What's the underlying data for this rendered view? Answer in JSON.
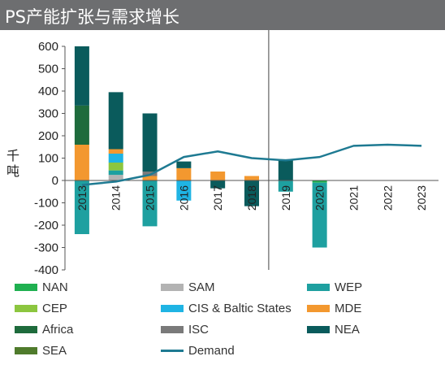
{
  "title": "PS产能扩张与需求增长",
  "chart_data": {
    "type": "bar",
    "title": "PS产能扩张与需求增长",
    "ylabel": "千吨",
    "xlabel": "",
    "ylim": [
      -400,
      600
    ],
    "yticks": [
      -400,
      -300,
      -200,
      -100,
      0,
      100,
      200,
      300,
      400,
      500,
      600
    ],
    "categories": [
      "2013",
      "2014",
      "2015",
      "2016",
      "2017",
      "2018",
      "2019",
      "2020",
      "2021",
      "2022",
      "2023"
    ],
    "stacked": true,
    "divider_after": "2018",
    "series": [
      {
        "name": "NAN",
        "color": "#1fb050",
        "values": [
          0,
          0,
          0,
          0,
          0,
          0,
          0,
          -10,
          0,
          0,
          0
        ]
      },
      {
        "name": "SAM",
        "color": "#b3b3b3",
        "values": [
          0,
          25,
          0,
          0,
          0,
          0,
          0,
          0,
          0,
          0,
          0
        ]
      },
      {
        "name": "WEP",
        "color": "#1ea0a0",
        "values": [
          -240,
          20,
          -205,
          0,
          0,
          0,
          -50,
          -290,
          0,
          0,
          0
        ]
      },
      {
        "name": "CEP",
        "color": "#8cc63f",
        "values": [
          0,
          35,
          0,
          0,
          0,
          0,
          0,
          0,
          0,
          0,
          0
        ]
      },
      {
        "name": "CIS & Baltic States",
        "color": "#1fb4e4",
        "values": [
          0,
          40,
          0,
          -90,
          0,
          0,
          0,
          0,
          0,
          0,
          0
        ]
      },
      {
        "name": "MDE",
        "color": "#f3982f",
        "values": [
          160,
          20,
          20,
          55,
          40,
          20,
          0,
          0,
          0,
          0,
          0
        ]
      },
      {
        "name": "Africa",
        "color": "#1e6b3c",
        "values": [
          175,
          0,
          0,
          0,
          0,
          0,
          0,
          0,
          0,
          0,
          0
        ]
      },
      {
        "name": "ISC",
        "color": "#7a7a7a",
        "values": [
          0,
          0,
          20,
          0,
          0,
          0,
          0,
          0,
          0,
          0,
          0
        ]
      },
      {
        "name": "NEA",
        "color": "#0a5b5c",
        "values": [
          265,
          255,
          260,
          30,
          -35,
          -115,
          95,
          0,
          0,
          0,
          0
        ]
      },
      {
        "name": "SEA",
        "color": "#4f7b2c",
        "values": [
          0,
          0,
          0,
          0,
          0,
          0,
          0,
          0,
          0,
          0,
          0
        ]
      }
    ],
    "demand": {
      "name": "Demand",
      "color": "#1e7a92",
      "values": [
        -20,
        -5,
        25,
        105,
        130,
        100,
        90,
        105,
        155,
        160,
        155
      ]
    },
    "grid": false,
    "legend_position": "bottom"
  },
  "legend": [
    {
      "label": "NAN",
      "color": "#1fb050",
      "kind": "box"
    },
    {
      "label": "SAM",
      "color": "#b3b3b3",
      "kind": "box"
    },
    {
      "label": "WEP",
      "color": "#1ea0a0",
      "kind": "box"
    },
    {
      "label": "CEP",
      "color": "#8cc63f",
      "kind": "box"
    },
    {
      "label": "CIS & Baltic States",
      "color": "#1fb4e4",
      "kind": "box"
    },
    {
      "label": "MDE",
      "color": "#f3982f",
      "kind": "box"
    },
    {
      "label": "Africa",
      "color": "#1e6b3c",
      "kind": "box"
    },
    {
      "label": "ISC",
      "color": "#7a7a7a",
      "kind": "box"
    },
    {
      "label": "NEA",
      "color": "#0a5b5c",
      "kind": "box"
    },
    {
      "label": "SEA",
      "color": "#4f7b2c",
      "kind": "box"
    },
    {
      "label": "Demand",
      "color": "#1e7a92",
      "kind": "line"
    }
  ]
}
